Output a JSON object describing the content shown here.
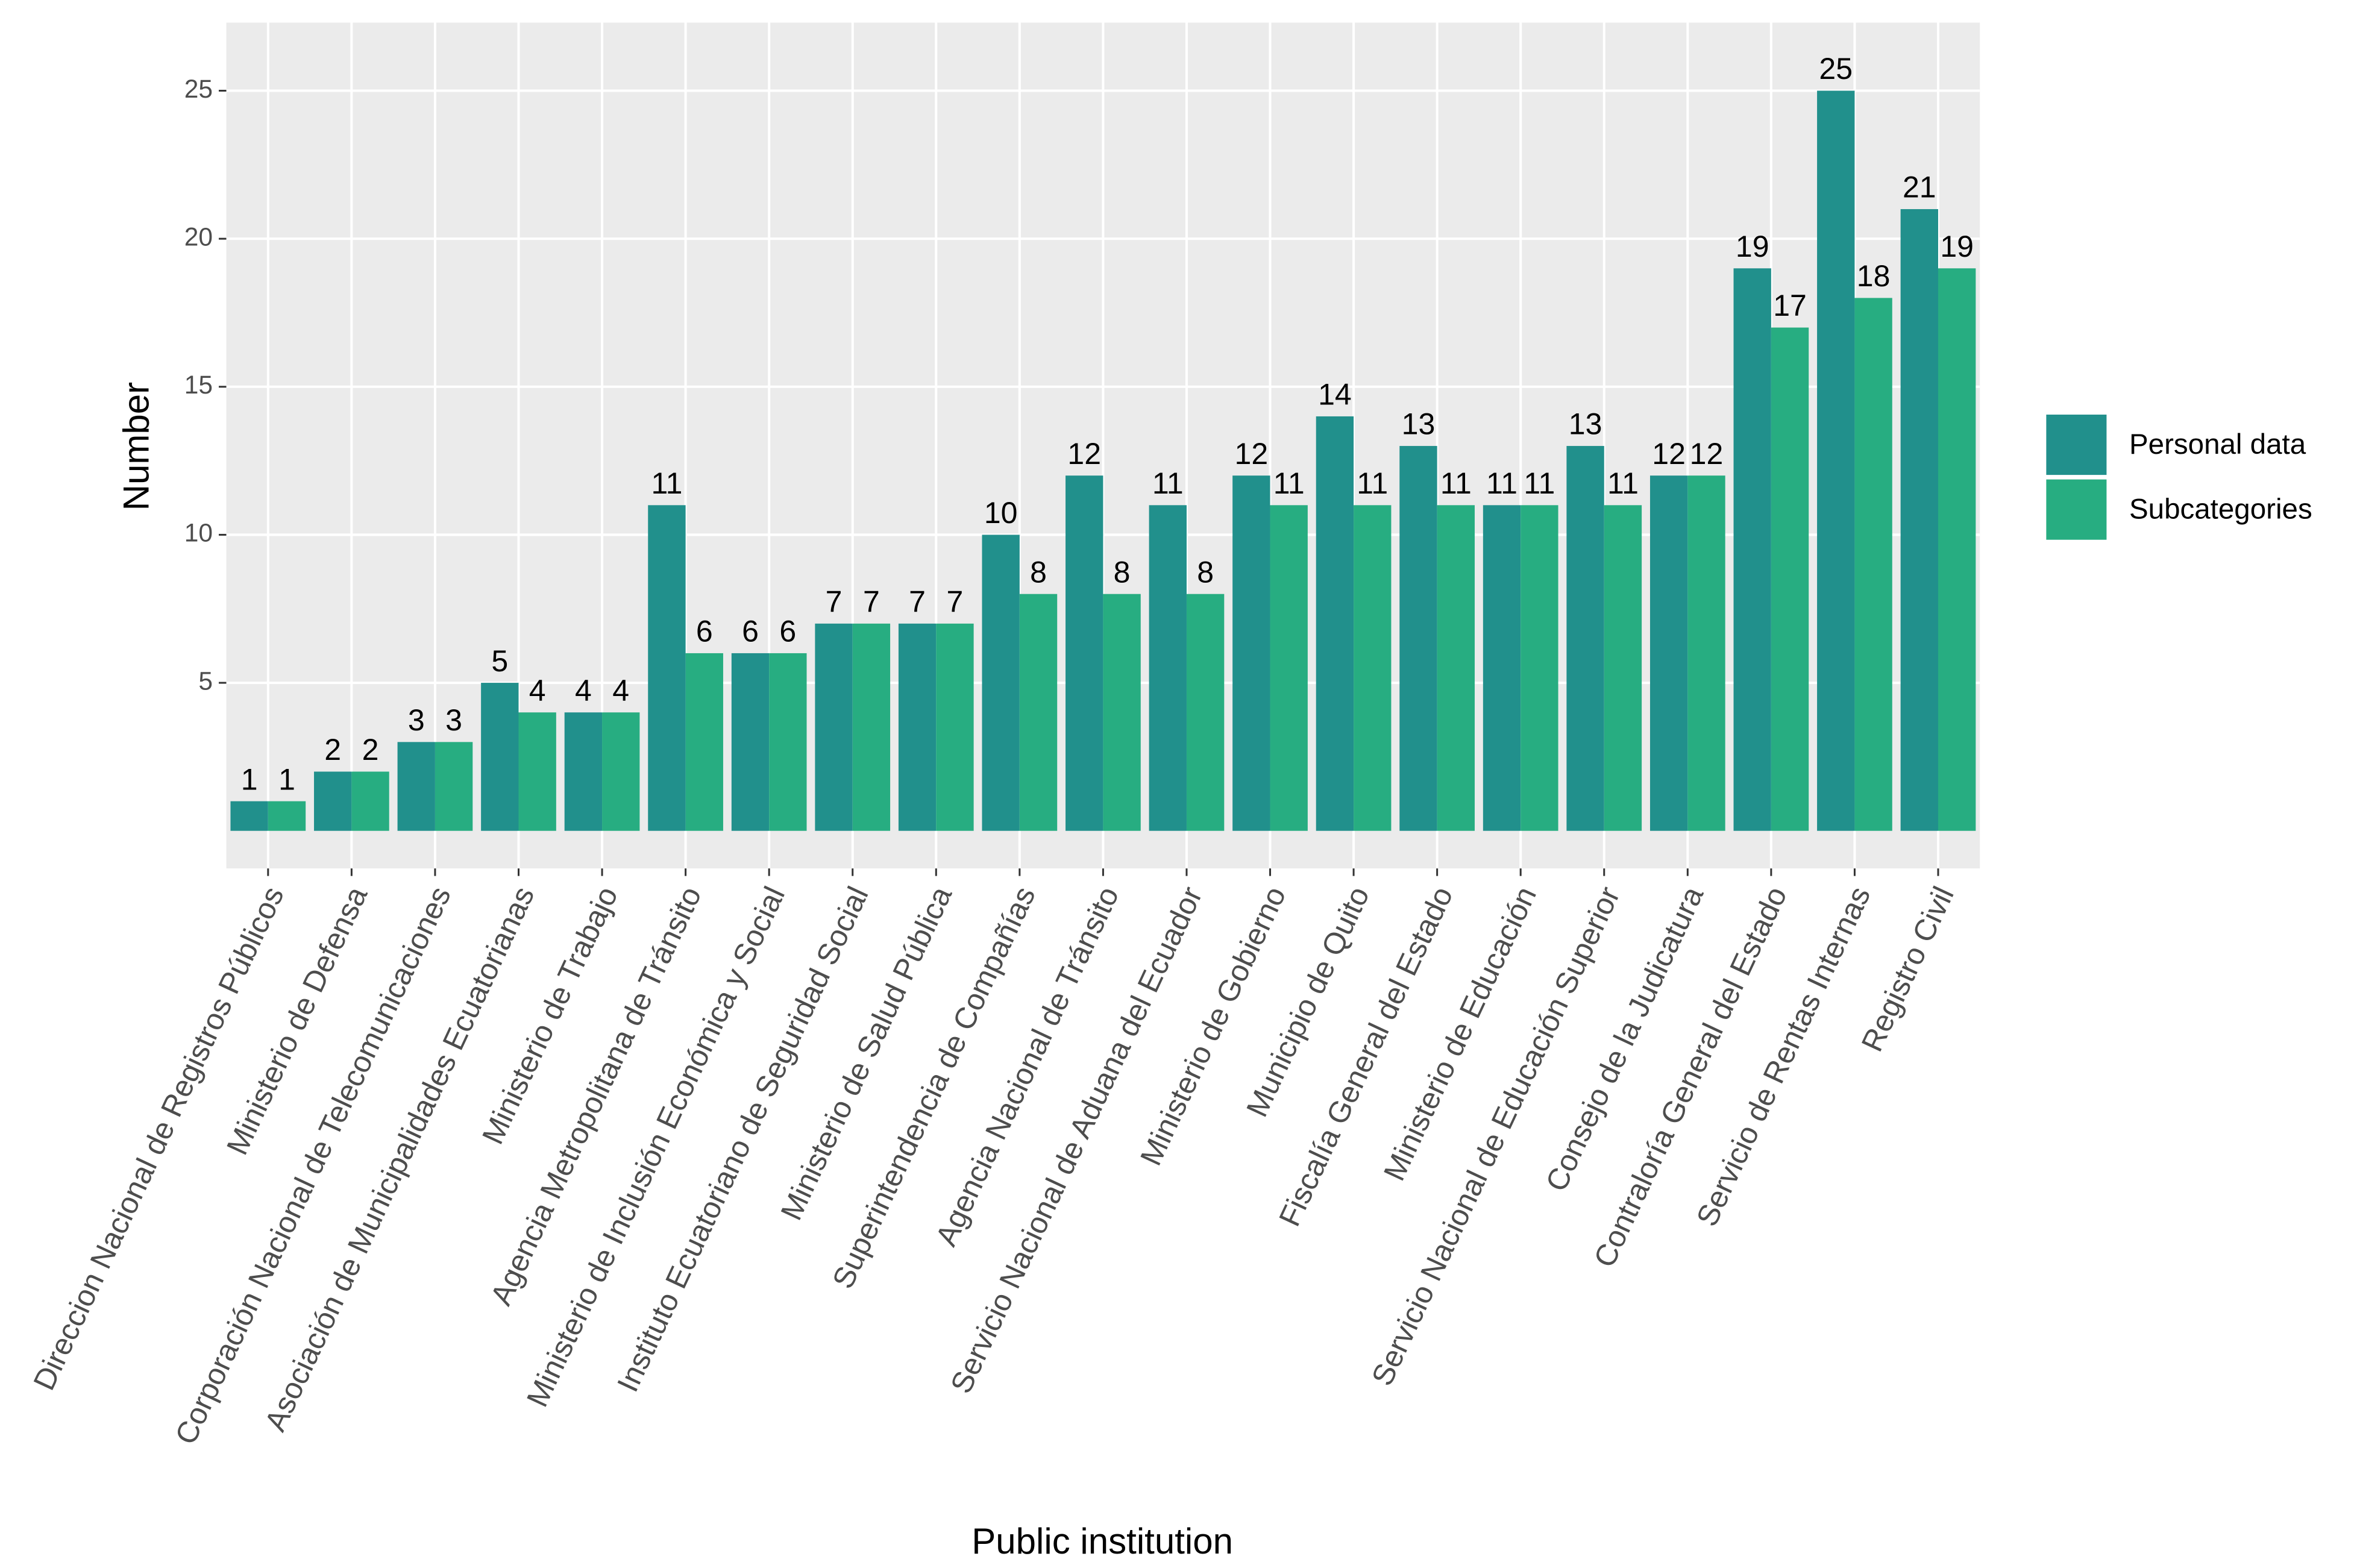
{
  "chart_data": {
    "type": "bar",
    "x_label": "Public institution",
    "y_label": "Number",
    "categories": [
      "Direccion Nacional de Registros Públicos",
      "Ministerio de Defensa",
      "Corporación Nacional de Telecomunicaciones",
      "Asociación de Municipalidades Ecuatorianas",
      "Ministerio de Trabajo",
      "Agencia Metropolitana de Tránsito",
      "Ministerio de Inclusión Económica y Social",
      "Instituto Ecuatoriano de Seguridad Social",
      "Ministerio de Salud Pública",
      "Superintendencia de Compañías",
      "Agencia Nacional de Tránsito",
      "Servicio Nacional de Aduana del Ecuador",
      "Ministerio de Gobierno",
      "Municipio de Quito",
      "Fiscalía General del Estado",
      "Ministerio de Educación",
      "Servicio Nacional de Educación Superior",
      "Consejo de la Judicatura",
      "Contraloría General del Estado",
      "Servicio de Rentas Internas",
      "Registro Civil"
    ],
    "series": [
      {
        "name": "Personal data",
        "color": "#21908c",
        "values": [
          1,
          2,
          3,
          5,
          4,
          11,
          6,
          7,
          7,
          10,
          12,
          11,
          12,
          14,
          13,
          11,
          13,
          12,
          19,
          25,
          21
        ]
      },
      {
        "name": "Subcategories",
        "color": "#27ad81",
        "values": [
          1,
          2,
          3,
          4,
          4,
          6,
          6,
          7,
          7,
          8,
          8,
          8,
          11,
          11,
          11,
          11,
          11,
          12,
          17,
          18,
          19
        ]
      }
    ],
    "ylim": [
      -1.27,
      27.3
    ],
    "yticks": [
      5,
      10,
      15,
      20,
      25
    ],
    "grid": true,
    "legend": "right"
  }
}
